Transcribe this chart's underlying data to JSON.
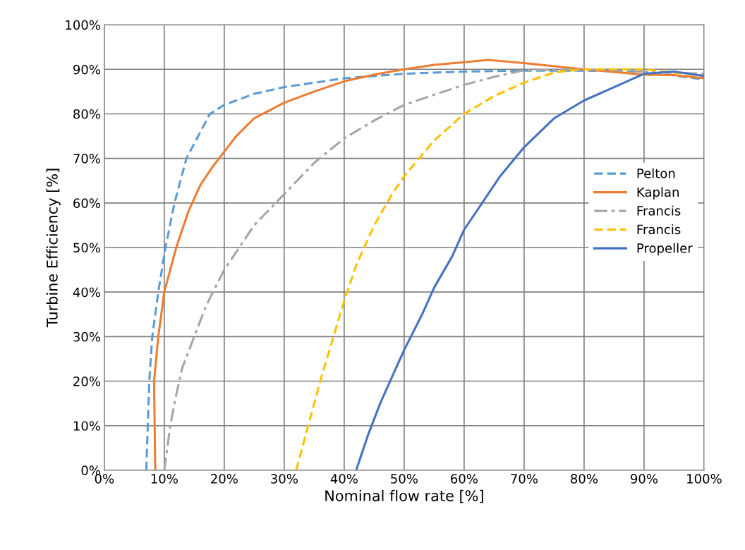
{
  "chart_data": {
    "type": "line",
    "xlabel": "Nominal flow rate [%]",
    "ylabel": "Turbine Efficiency [%]",
    "xlim": [
      0,
      100
    ],
    "ylim": [
      0,
      100
    ],
    "xticks": [
      {
        "value": 0,
        "label": "0%"
      },
      {
        "value": 10,
        "label": "10%"
      },
      {
        "value": 20,
        "label": "20%"
      },
      {
        "value": 30,
        "label": "30%"
      },
      {
        "value": 40,
        "label": "40%"
      },
      {
        "value": 50,
        "label": "50%"
      },
      {
        "value": 60,
        "label": "60%"
      },
      {
        "value": 70,
        "label": "70%"
      },
      {
        "value": 80,
        "label": "80%"
      },
      {
        "value": 90,
        "label": "90%"
      },
      {
        "value": 100,
        "label": "100%"
      }
    ],
    "yticks": [
      {
        "value": 0,
        "label": "0%"
      },
      {
        "value": 10,
        "label": "10%"
      },
      {
        "value": 20,
        "label": "20%"
      },
      {
        "value": 30,
        "label": "30%"
      },
      {
        "value": 40,
        "label": "40%"
      },
      {
        "value": 50,
        "label": "50%"
      },
      {
        "value": 60,
        "label": "60%"
      },
      {
        "value": 70,
        "label": "70%"
      },
      {
        "value": 80,
        "label": "80%"
      },
      {
        "value": 90,
        "label": "90%"
      },
      {
        "value": 100,
        "label": "100%"
      }
    ],
    "grid": true,
    "legend": "right",
    "marker": "none",
    "series": [
      {
        "name": "Pelton",
        "color": "#5b9bd5",
        "line_style": "dashed",
        "x": [
          7,
          7.5,
          8,
          9,
          10.2,
          11.7,
          13.7,
          17.6,
          20,
          25,
          30,
          40,
          50,
          60,
          70,
          80,
          90,
          100
        ],
        "values": [
          0,
          20,
          30,
          40,
          50,
          60,
          70,
          80,
          82,
          84.5,
          86,
          88,
          89,
          89.5,
          89.7,
          89.7,
          89.5,
          87.7
        ]
      },
      {
        "name": "Kaplan",
        "color": "#ed7d31",
        "line_style": "solid",
        "x": [
          8.5,
          8.3,
          9,
          10,
          12,
          14,
          16,
          18,
          20,
          22,
          25,
          30,
          35,
          40,
          45,
          50,
          55,
          60,
          64,
          70,
          80,
          90,
          95,
          100
        ],
        "values": [
          0,
          20,
          30,
          40,
          50,
          58,
          64,
          68,
          71.5,
          75,
          79,
          82.5,
          85,
          87.3,
          88.8,
          90,
          91,
          91.6,
          92.1,
          91.4,
          90,
          88.8,
          88.7,
          88
        ]
      },
      {
        "name": "Francis",
        "color": "#a5a5a5",
        "line_style": "dashdot",
        "x": [
          10,
          11,
          12,
          13,
          15,
          17,
          20,
          25,
          30,
          35,
          40,
          45,
          50,
          55,
          60,
          65,
          70,
          80,
          90,
          100
        ],
        "values": [
          0,
          10,
          17,
          23,
          30,
          37,
          45,
          55,
          62,
          69,
          74.5,
          78.5,
          82,
          84.3,
          86.5,
          88.3,
          89.8,
          90,
          89.5,
          89
        ]
      },
      {
        "name": "Francis",
        "color": "#ffc000",
        "line_style": "dashed",
        "x": [
          32,
          34,
          36,
          38,
          40,
          42,
          45,
          48,
          50,
          55,
          60,
          65,
          70,
          75,
          80,
          90,
          100
        ],
        "values": [
          0,
          10,
          20,
          29,
          38,
          46,
          55,
          62,
          66,
          74,
          80,
          84,
          87,
          89.3,
          90,
          90,
          88.5
        ]
      },
      {
        "name": "Propeller",
        "color": "#4472c4",
        "line_style": "solid",
        "x": [
          42,
          44,
          46,
          48,
          50,
          53,
          55,
          58,
          60,
          63,
          66,
          70,
          75,
          80,
          85,
          90,
          95,
          100
        ],
        "values": [
          0,
          8,
          15,
          21,
          27,
          35,
          41,
          48,
          54,
          60,
          66,
          72.5,
          79,
          83,
          86,
          89,
          89.5,
          88.5
        ]
      }
    ]
  }
}
